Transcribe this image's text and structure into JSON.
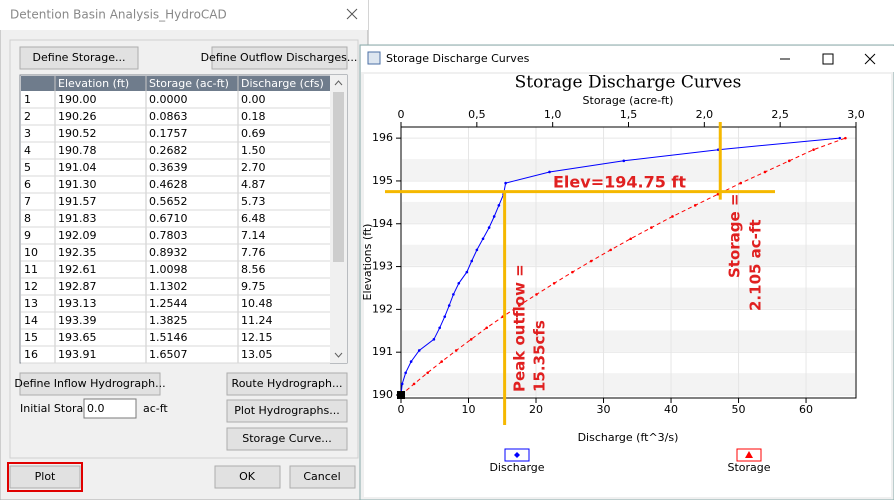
{
  "dialog": {
    "title": "Detention Basin Analysis_HydroCAD",
    "buttons": {
      "define_storage": "Define Storage...",
      "define_outflow": "Define Outflow Discharges...",
      "define_inflow": "Define Inflow Hydrograph...",
      "route": "Route Hydrograph...",
      "plot_hydrographs": "Plot Hydrographs...",
      "storage_curve": "Storage Curve...",
      "plot": "Plot",
      "ok": "OK",
      "cancel": "Cancel"
    },
    "initial_storage_label": "Initial Storage:",
    "initial_storage_value": "0.0",
    "initial_storage_unit": "ac-ft"
  },
  "table": {
    "columns": [
      "Elevation (ft)",
      "Storage (ac-ft)",
      "Discharge (cfs)"
    ],
    "rows": [
      [
        "1",
        "190.00",
        "0.0000",
        "0.00"
      ],
      [
        "2",
        "190.26",
        "0.0863",
        "0.18"
      ],
      [
        "3",
        "190.52",
        "0.1757",
        "0.69"
      ],
      [
        "4",
        "190.78",
        "0.2682",
        "1.50"
      ],
      [
        "5",
        "191.04",
        "0.3639",
        "2.70"
      ],
      [
        "6",
        "191.30",
        "0.4628",
        "4.87"
      ],
      [
        "7",
        "191.57",
        "0.5652",
        "5.73"
      ],
      [
        "8",
        "191.83",
        "0.6710",
        "6.48"
      ],
      [
        "9",
        "192.09",
        "0.7803",
        "7.14"
      ],
      [
        "10",
        "192.35",
        "0.8932",
        "7.76"
      ],
      [
        "11",
        "192.61",
        "1.0098",
        "8.56"
      ],
      [
        "12",
        "192.87",
        "1.1302",
        "9.75"
      ],
      [
        "13",
        "193.13",
        "1.2544",
        "10.48"
      ],
      [
        "14",
        "193.39",
        "1.3825",
        "11.24"
      ],
      [
        "15",
        "193.65",
        "1.5146",
        "12.15"
      ],
      [
        "16",
        "193.91",
        "1.6507",
        "13.05"
      ]
    ]
  },
  "chart_window": {
    "title": "Storage Discharge Curves"
  },
  "chart_data": {
    "type": "line",
    "title": "Storage Discharge Curves",
    "x_label": "Discharge (ft^3/s)",
    "x2_label": "Storage (acre-ft)",
    "y_label": "Elevations (ft)",
    "xlim": [
      0,
      67.4
    ],
    "xticks": [
      0,
      10,
      20,
      30,
      40,
      50,
      60
    ],
    "x2lim": [
      0,
      3.0
    ],
    "x2ticks": [
      0,
      {
        "value": 0.5,
        "label": "0,5"
      },
      {
        "value": 1.0,
        "label": "1,0"
      },
      {
        "value": 1.5,
        "label": "1,5"
      },
      {
        "value": 2.0,
        "label": "2,0"
      },
      {
        "value": 2.5,
        "label": "2,5"
      },
      {
        "value": 3.0,
        "label": "3,0"
      }
    ],
    "ylim": [
      189.93,
      196.26
    ],
    "yticks": [
      190,
      191,
      192,
      193,
      194,
      195,
      196
    ],
    "grid": true,
    "series": [
      {
        "name": "Discharge",
        "color": "#0000ff",
        "x": [
          0,
          0.18,
          0.69,
          1.5,
          2.7,
          4.87,
          5.73,
          6.48,
          7.14,
          7.76,
          8.56,
          9.75,
          10.48,
          11.24,
          12.15,
          13.05,
          13.8,
          14.5,
          15.2,
          15.5,
          22,
          33,
          47,
          65
        ],
        "values": [
          190,
          190.26,
          190.52,
          190.78,
          191.04,
          191.3,
          191.57,
          191.83,
          192.09,
          192.35,
          192.61,
          192.87,
          193.13,
          193.39,
          193.65,
          193.91,
          194.17,
          194.43,
          194.69,
          194.95,
          195.21,
          195.47,
          195.73,
          196
        ]
      },
      {
        "name": "Storage",
        "color": "#ff0000",
        "axis": "x2",
        "x": [
          0,
          0.0863,
          0.1757,
          0.2682,
          0.3639,
          0.4628,
          0.5652,
          0.671,
          0.7803,
          0.8932,
          1.0098,
          1.1302,
          1.2544,
          1.3825,
          1.5146,
          1.6507,
          1.79,
          1.94,
          2.09,
          2.24,
          2.4,
          2.56,
          2.72,
          2.93
        ],
        "values": [
          190,
          190.26,
          190.52,
          190.78,
          191.04,
          191.3,
          191.57,
          191.83,
          192.09,
          192.35,
          192.61,
          192.87,
          193.13,
          193.39,
          193.65,
          193.91,
          194.17,
          194.43,
          194.69,
          194.95,
          195.21,
          195.47,
          195.73,
          196
        ]
      }
    ],
    "reference_lines": {
      "elevation": 194.75,
      "discharge": 15.35,
      "storage": 2.105
    },
    "annotations": {
      "elevation": "Elev=194.75 ft",
      "peak_outflow": [
        "Peak outflow =",
        "15.35cfs"
      ],
      "storage": [
        "Storage =",
        "2.105 ac-ft"
      ]
    }
  }
}
